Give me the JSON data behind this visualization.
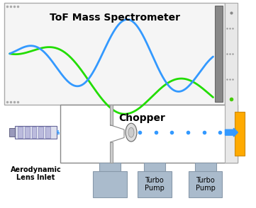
{
  "title": "ToF Mass Spectrometer",
  "chopper_label": "Chopper",
  "aerodyn_label": "Aerodynamic\nLens Inlet",
  "turbo_label": "Turbo\nPump",
  "bg_color": "#ffffff",
  "green_color": "#22dd00",
  "blue_color": "#3399ff",
  "tof_bg": "#f5f5f5",
  "lower_bg": "#ffffff",
  "grey_rect": "#888888",
  "pump_color": "#aabbcc"
}
